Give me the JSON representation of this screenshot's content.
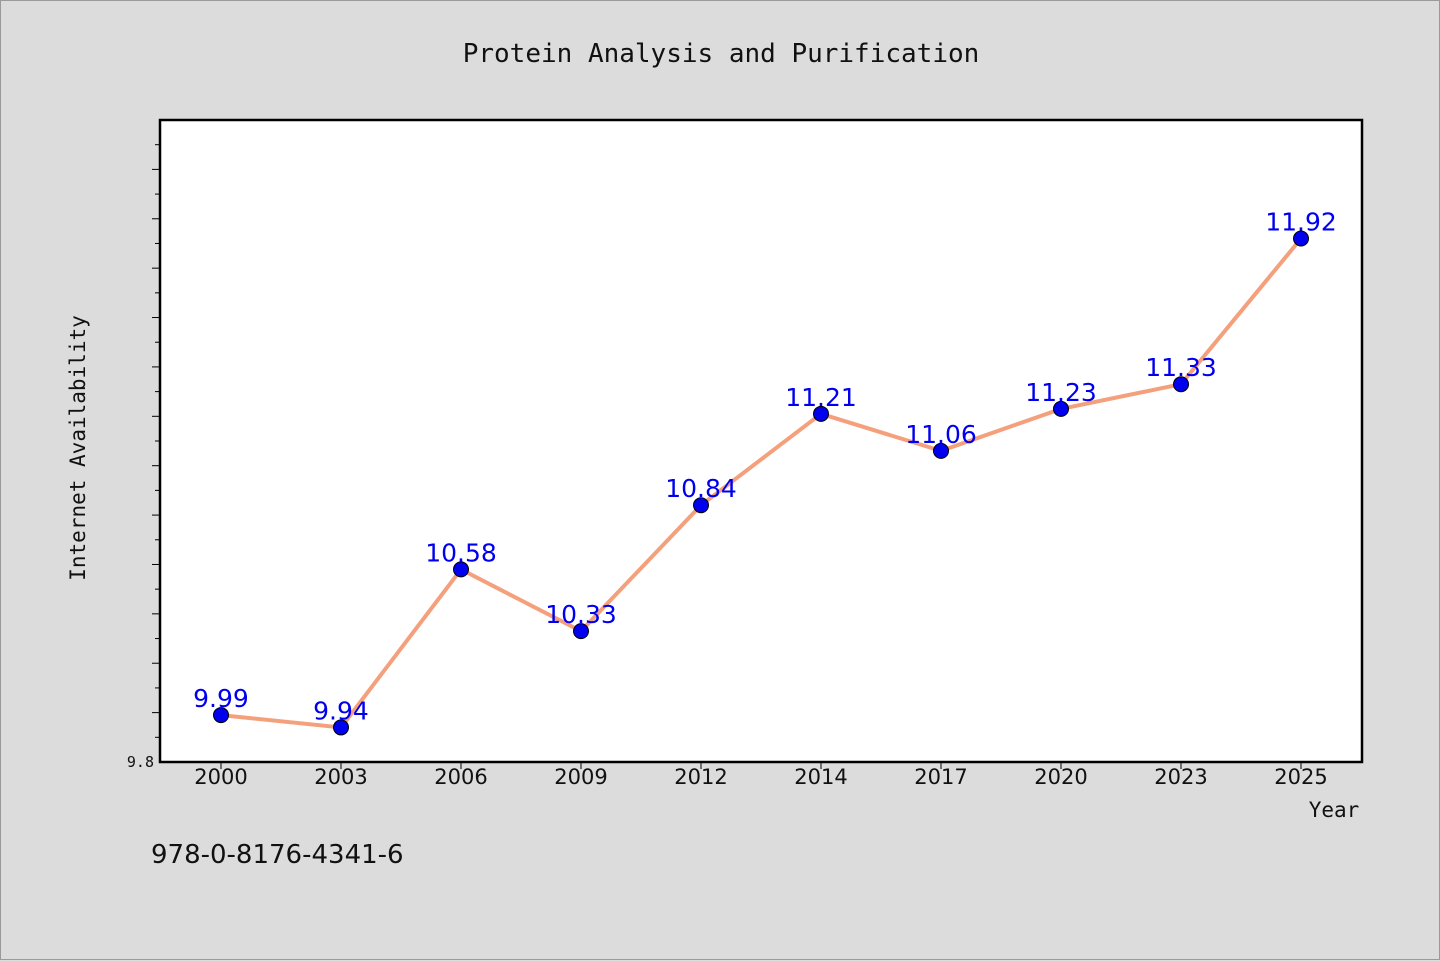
{
  "chart_data": {
    "type": "line",
    "title": "Protein Analysis and Purification",
    "xlabel": "Year",
    "ylabel": "Internet Availability",
    "categories": [
      "2000",
      "2003",
      "2006",
      "2009",
      "2012",
      "2014",
      "2017",
      "2020",
      "2023",
      "2025"
    ],
    "series": [
      {
        "values": [
          9.99,
          9.94,
          10.58,
          10.33,
          10.84,
          11.21,
          11.06,
          11.23,
          11.33,
          11.92
        ],
        "data_labels": [
          "9.99",
          "9.94",
          "10.58",
          "10.33",
          "10.84",
          "11.21",
          "11.06",
          "11.23",
          "11.33",
          "11.92"
        ]
      }
    ],
    "ylim": [
      9.8,
      12.4
    ],
    "ytick_labels": [
      {
        "value": 9.8,
        "label": "9.8"
      }
    ],
    "grid": false,
    "legend": "none",
    "colors": {
      "line": "#f4a07c",
      "marker": "#0000ee",
      "data_label": "#0000ee",
      "plot_background": "#ffffff",
      "page_background": "#dcdcdc"
    }
  },
  "footer": {
    "isbn": "978-0-8176-4341-6"
  }
}
